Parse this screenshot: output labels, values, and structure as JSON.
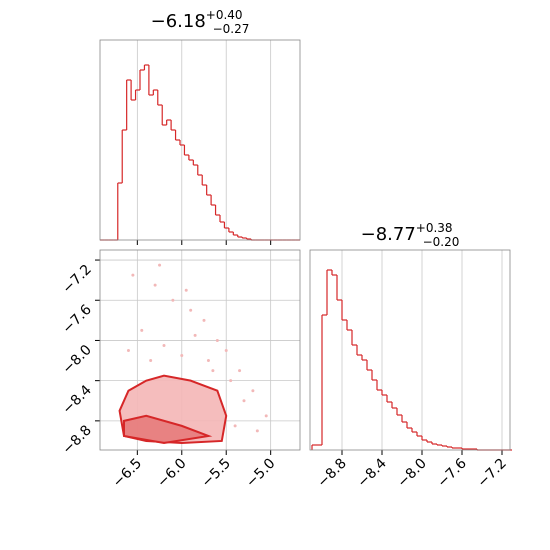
{
  "chart_data": [
    {
      "type": "histogram",
      "title": {
        "value": "−6.18",
        "upper": "+0.40",
        "lower": "−0.27"
      },
      "color": "#d62728",
      "bins": [
        -6.92,
        -6.87,
        -6.82,
        -6.77,
        -6.72,
        -6.67,
        -6.62,
        -6.57,
        -6.52,
        -6.47,
        -6.42,
        -6.37,
        -6.32,
        -6.27,
        -6.22,
        -6.17,
        -6.12,
        -6.07,
        -6.02,
        -5.97,
        -5.92,
        -5.87,
        -5.82,
        -5.77,
        -5.72,
        -5.67,
        -5.62,
        -5.57,
        -5.52,
        -5.47,
        -5.42,
        -5.37,
        -5.32,
        -5.27,
        -5.22,
        -5.17,
        -5.12,
        -5.07,
        -5.02,
        -4.97,
        -4.92,
        -4.87,
        -4.82,
        -4.77,
        -4.72,
        -4.67
      ],
      "values": [
        0,
        0,
        0,
        0,
        57,
        110,
        160,
        140,
        150,
        170,
        175,
        145,
        150,
        135,
        115,
        120,
        110,
        100,
        95,
        85,
        80,
        75,
        65,
        55,
        45,
        35,
        25,
        18,
        12,
        8,
        5,
        3,
        2,
        1,
        0,
        0,
        0,
        0,
        0,
        0,
        0,
        0,
        0,
        0,
        0
      ],
      "xlim": [
        -6.92,
        -4.67
      ],
      "ylim": [
        0,
        200
      ],
      "xticks": [
        -6.5,
        -6.0,
        -5.5,
        -5.0
      ],
      "grid": true
    },
    {
      "type": "scatter",
      "color": "#d62728",
      "x": [
        -6.55,
        -6.3,
        -6.1,
        -5.9,
        -5.75,
        -5.6,
        -5.5,
        -5.35,
        -5.2,
        -5.05,
        -6.45,
        -6.2,
        -5.95,
        -5.7,
        -5.45,
        -5.3,
        -6.6,
        -6.0,
        -5.85,
        -5.15,
        -6.25,
        -5.65,
        -6.35,
        -5.4
      ],
      "y": [
        -7.35,
        -7.45,
        -7.6,
        -7.7,
        -7.8,
        -8.0,
        -8.1,
        -8.3,
        -8.5,
        -8.75,
        -7.9,
        -8.05,
        -7.5,
        -8.2,
        -8.4,
        -8.6,
        -8.1,
        -8.15,
        -7.95,
        -8.9,
        -7.25,
        -8.3,
        -8.2,
        -8.85
      ],
      "contours": [
        {
          "color": "#f4b6b6",
          "x": [
            -6.65,
            -6.7,
            -6.6,
            -6.4,
            -6.2,
            -5.9,
            -5.6,
            -5.5,
            -5.55,
            -6.0,
            -6.4
          ],
          "y": [
            -8.95,
            -8.7,
            -8.5,
            -8.4,
            -8.35,
            -8.4,
            -8.5,
            -8.75,
            -9.0,
            -9.02,
            -9.0
          ]
        },
        {
          "color": "#e77b7b",
          "x": [
            -6.65,
            -6.65,
            -6.4,
            -6.0,
            -5.7,
            -6.2
          ],
          "y": [
            -8.95,
            -8.8,
            -8.75,
            -8.85,
            -8.95,
            -9.02
          ]
        }
      ],
      "xlim": [
        -6.92,
        -4.67
      ],
      "ylim": [
        -9.09,
        -7.1
      ],
      "xticks": [
        {
          "value": -6.5,
          "label": "−6.5"
        },
        {
          "value": -6.0,
          "label": "−6.0"
        },
        {
          "value": -5.5,
          "label": "−5.5"
        },
        {
          "value": -5.0,
          "label": "−5.0"
        }
      ],
      "yticks": [
        {
          "value": -7.2,
          "label": "−7.2"
        },
        {
          "value": -7.6,
          "label": "−7.6"
        },
        {
          "value": -8.0,
          "label": "−8.0"
        },
        {
          "value": -8.4,
          "label": "−8.4"
        },
        {
          "value": -8.8,
          "label": "−8.8"
        }
      ],
      "grid": true
    },
    {
      "type": "histogram",
      "title": {
        "value": "−8.77",
        "upper": "+0.38",
        "lower": "−0.20"
      },
      "color": "#d62728",
      "bins": [
        -9.1,
        -9.05,
        -9.0,
        -8.95,
        -8.9,
        -8.85,
        -8.8,
        -8.75,
        -8.7,
        -8.65,
        -8.6,
        -8.55,
        -8.5,
        -8.45,
        -8.4,
        -8.35,
        -8.3,
        -8.25,
        -8.2,
        -8.15,
        -8.1,
        -8.05,
        -8.0,
        -7.95,
        -7.9,
        -7.85,
        -7.8,
        -7.75,
        -7.7,
        -7.65,
        -7.6,
        -7.55,
        -7.5,
        -7.45,
        -7.4,
        -7.35,
        -7.3,
        -7.25,
        -7.2,
        -7.15,
        -7.1
      ],
      "values": [
        5,
        5,
        135,
        180,
        175,
        150,
        130,
        120,
        105,
        95,
        90,
        80,
        70,
        60,
        55,
        48,
        42,
        35,
        28,
        22,
        18,
        14,
        10,
        8,
        6,
        5,
        4,
        3,
        2,
        2,
        1,
        1,
        1,
        0,
        0,
        0,
        0,
        0,
        0,
        0
      ],
      "xlim": [
        -9.12,
        -7.12
      ],
      "ylim": [
        0,
        200
      ],
      "xticks": [
        {
          "value": -8.8,
          "label": "−8.8"
        },
        {
          "value": -8.4,
          "label": "−8.4"
        },
        {
          "value": -8.0,
          "label": "−8.0"
        },
        {
          "value": -7.6,
          "label": "−7.6"
        },
        {
          "value": -7.2,
          "label": "−7.2"
        }
      ],
      "grid": true
    }
  ]
}
